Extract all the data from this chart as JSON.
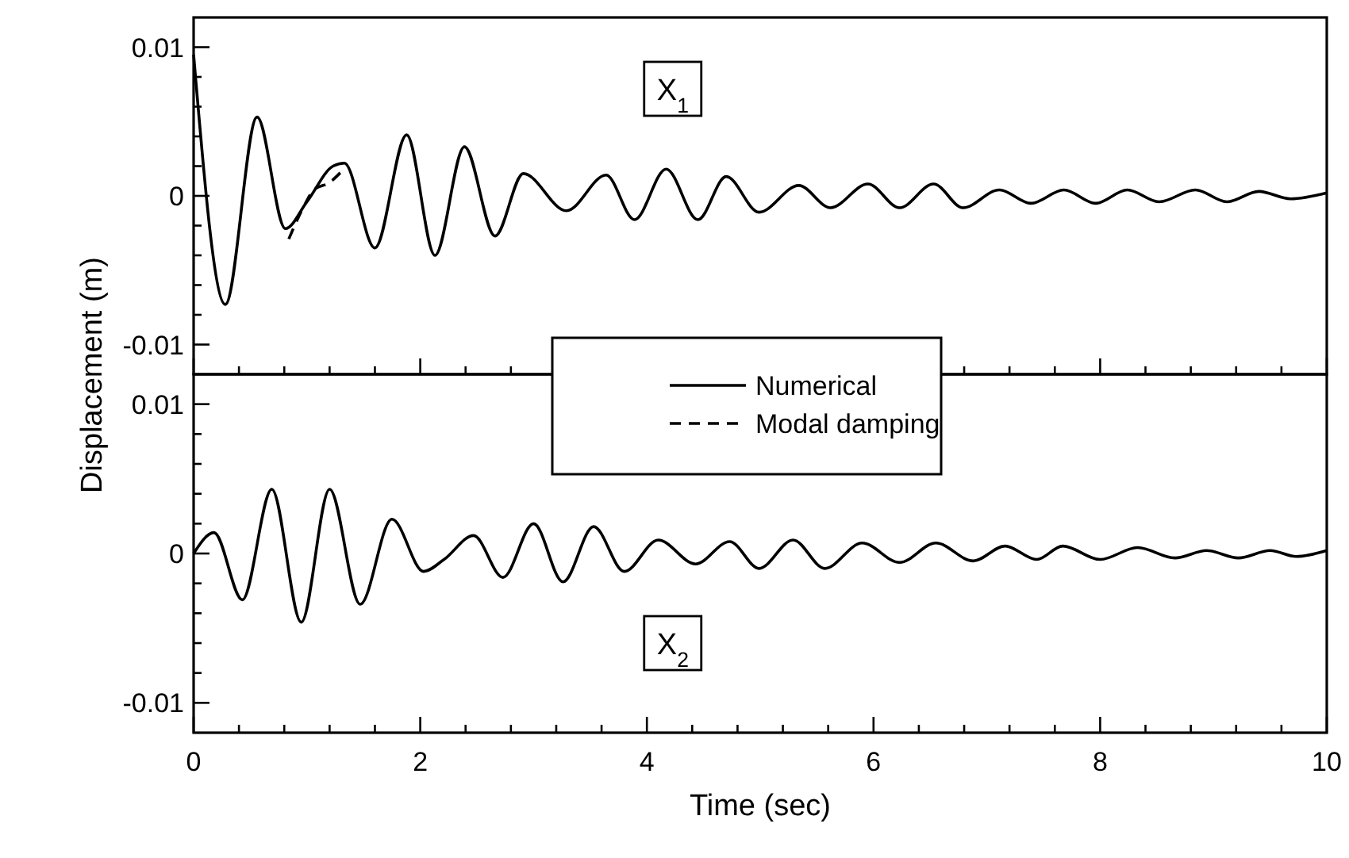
{
  "chart_data": [
    {
      "type": "line",
      "ylabel": "Displacement (m)",
      "annotations": [
        "X$_{1}$"
      ],
      "legend": "bottom",
      "tick_labels": "y",
      "xlim": [
        0,
        10
      ],
      "xticks": [
        {
          "value": 0,
          "label": null
        },
        {
          "value": 0.4,
          "label": null
        },
        {
          "value": 0.8,
          "label": null
        },
        {
          "value": 1.2,
          "label": null
        },
        {
          "value": 1.6,
          "label": null
        },
        {
          "value": 2,
          "label": null
        },
        {
          "value": 2.4,
          "label": null
        },
        {
          "value": 2.8,
          "label": null
        },
        {
          "value": 3.2,
          "label": null
        },
        {
          "value": 3.6,
          "label": null
        },
        {
          "value": 4,
          "label": null
        },
        {
          "value": 4.4,
          "label": null
        },
        {
          "value": 4.8,
          "label": null
        },
        {
          "value": 5.2,
          "label": null
        },
        {
          "value": 5.6,
          "label": null
        },
        {
          "value": 6,
          "label": null
        },
        {
          "value": 6.4,
          "label": null
        },
        {
          "value": 6.8,
          "label": null
        },
        {
          "value": 7.2,
          "label": null
        },
        {
          "value": 7.6,
          "label": null
        },
        {
          "value": 8,
          "label": null
        },
        {
          "value": 8.4,
          "label": null
        },
        {
          "value": 8.8,
          "label": null
        },
        {
          "value": 9.2,
          "label": null
        },
        {
          "value": 9.6,
          "label": null
        },
        {
          "value": 10,
          "label": null
        }
      ],
      "ylim": [
        -0.012,
        0.012
      ],
      "yticks": [
        {
          "value": -0.01,
          "label": "-0.01"
        },
        {
          "value": -0.008,
          "label": null
        },
        {
          "value": -0.006,
          "label": null
        },
        {
          "value": -0.004,
          "label": null
        },
        {
          "value": -0.002,
          "label": null
        },
        0,
        {
          "value": 0.002,
          "label": null
        },
        {
          "value": 0.004,
          "label": null
        },
        {
          "value": 0.006,
          "label": null
        },
        {
          "value": 0.008,
          "label": null
        },
        {
          "value": 0.01,
          "label": "0.01"
        }
      ],
      "series": [
        {
          "name": "Numerical",
          "color": "#000000",
          "line_style": "solid",
          "x": [
            0,
            0.28,
            0.56,
            0.81,
            1.0,
            1.23,
            1.33,
            1.6,
            1.88,
            2.13,
            2.39,
            2.66,
            2.91,
            3.29,
            3.64,
            3.89,
            4.17,
            4.45,
            4.7,
            4.99,
            5.34,
            5.62,
            5.95,
            6.23,
            6.53,
            6.79,
            7.11,
            7.39,
            7.68,
            7.96,
            8.24,
            8.52,
            8.84,
            9.12,
            9.4,
            9.68,
            10
          ],
          "values": [
            0.0095,
            -0.0073,
            0.0053,
            -0.0022,
            -0.0004,
            0.002,
            0.0022,
            -0.0035,
            0.0041,
            -0.004,
            0.0033,
            -0.0027,
            0.0015,
            -0.001,
            0.0014,
            -0.0016,
            0.0018,
            -0.0016,
            0.0013,
            -0.0011,
            0.0007,
            -0.0008,
            0.0008,
            -0.0008,
            0.0008,
            -0.0008,
            0.0004,
            -0.0005,
            0.0004,
            -0.0005,
            0.0004,
            -0.0004,
            0.0004,
            -0.0004,
            0.0003,
            -0.0002,
            0.0002
          ]
        },
        {
          "name": "Modal damping",
          "color": "#000000",
          "line_style": "dashed",
          "x": [
            0.84,
            0.98,
            1.06,
            1.2,
            1.3
          ],
          "values": [
            -0.0029,
            -0.0006,
            0.0004,
            0.0009,
            0.0016
          ]
        }
      ]
    },
    {
      "type": "line",
      "xlabel": "Time (sec)",
      "annotations": [
        "X$_{2}$"
      ],
      "xlim": [
        0,
        10
      ],
      "xticks": [
        0,
        {
          "value": 0.4,
          "label": null
        },
        {
          "value": 0.8,
          "label": null
        },
        {
          "value": 1.2,
          "label": null
        },
        {
          "value": 1.6,
          "label": null
        },
        2,
        {
          "value": 2.4,
          "label": null
        },
        {
          "value": 2.8,
          "label": null
        },
        {
          "value": 3.2,
          "label": null
        },
        {
          "value": 3.6,
          "label": null
        },
        4,
        {
          "value": 4.4,
          "label": null
        },
        {
          "value": 4.8,
          "label": null
        },
        {
          "value": 5.2,
          "label": null
        },
        {
          "value": 5.6,
          "label": null
        },
        6,
        {
          "value": 6.4,
          "label": null
        },
        {
          "value": 6.8,
          "label": null
        },
        {
          "value": 7.2,
          "label": null
        },
        {
          "value": 7.6,
          "label": null
        },
        8,
        {
          "value": 8.4,
          "label": null
        },
        {
          "value": 8.8,
          "label": null
        },
        {
          "value": 9.2,
          "label": null
        },
        {
          "value": 9.6,
          "label": null
        },
        10
      ],
      "ylim": [
        -0.012,
        0.012
      ],
      "yticks": [
        {
          "value": -0.01,
          "label": "-0.01"
        },
        {
          "value": -0.008,
          "label": null
        },
        {
          "value": -0.006,
          "label": null
        },
        {
          "value": -0.004,
          "label": null
        },
        {
          "value": -0.002,
          "label": null
        },
        0,
        {
          "value": 0.002,
          "label": null
        },
        {
          "value": 0.004,
          "label": null
        },
        {
          "value": 0.006,
          "label": null
        },
        {
          "value": 0.008,
          "label": null
        },
        {
          "value": 0.01,
          "label": "0.01"
        }
      ],
      "series": [
        {
          "color": "#000000",
          "line_style": "solid",
          "x": [
            0,
            0.18,
            0.43,
            0.69,
            0.95,
            1.2,
            1.47,
            1.75,
            2.03,
            2.21,
            2.47,
            2.73,
            3.0,
            3.26,
            3.53,
            3.8,
            4.1,
            4.43,
            4.73,
            4.99,
            5.29,
            5.57,
            5.9,
            6.23,
            6.55,
            6.88,
            7.16,
            7.44,
            7.67,
            8.0,
            8.33,
            8.66,
            8.94,
            9.22,
            9.5,
            9.73,
            10
          ],
          "values": [
            0,
            0.0014,
            -0.0031,
            0.0043,
            -0.0046,
            0.0043,
            -0.0034,
            0.0023,
            -0.0012,
            -0.0004,
            0.0012,
            -0.0016,
            0.002,
            -0.0019,
            0.0018,
            -0.0012,
            0.0009,
            -0.0007,
            0.0008,
            -0.001,
            0.0009,
            -0.001,
            0.0007,
            -0.0006,
            0.0007,
            -0.0005,
            0.0005,
            -0.0004,
            0.0005,
            -0.0004,
            0.0004,
            -0.0003,
            0.0002,
            -0.0003,
            0.0002,
            -0.0002,
            0.0002
          ]
        }
      ]
    }
  ]
}
